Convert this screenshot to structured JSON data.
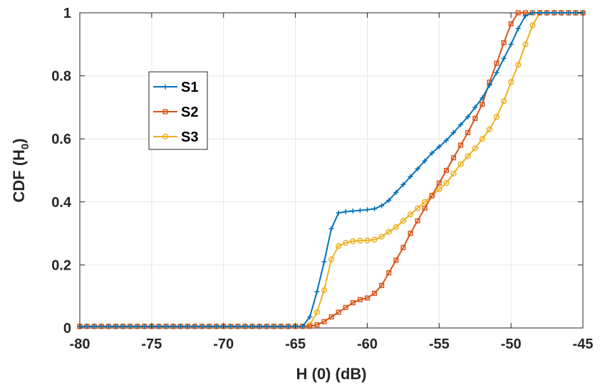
{
  "chart_data": {
    "type": "line",
    "title": "",
    "xlabel": "H (0) (dB)",
    "ylabel": "CDF (H",
    "ylabel_subscript": "0",
    "ylabel_close": ")",
    "xlim": [
      -80,
      -45
    ],
    "ylim": [
      0,
      1
    ],
    "xticks": [
      -80,
      -75,
      -70,
      -65,
      -60,
      -55,
      -50,
      -45
    ],
    "yticks": [
      0,
      0.2,
      0.4,
      0.6,
      0.8,
      1
    ],
    "xtick_labels": [
      "-80",
      "-75",
      "-70",
      "-65",
      "-60",
      "-55",
      "-50",
      "-45"
    ],
    "ytick_labels": [
      "0",
      "0.2",
      "0.4",
      "0.6",
      "0.8",
      "1"
    ],
    "grid": true,
    "legend_position": "upper-left-inside",
    "series": [
      {
        "name": "S1",
        "color": "#0072BD",
        "marker": "plus",
        "x": [
          -80,
          -79.5,
          -79,
          -78.5,
          -78,
          -77.5,
          -77,
          -76.5,
          -76,
          -75.5,
          -75,
          -74.5,
          -74,
          -73.5,
          -73,
          -72.5,
          -72,
          -71.5,
          -71,
          -70.5,
          -70,
          -69.5,
          -69,
          -68.5,
          -68,
          -67.5,
          -67,
          -66.5,
          -66,
          -65.5,
          -65,
          -64.5,
          -64,
          -63.5,
          -63,
          -62.5,
          -62,
          -61.5,
          -61,
          -60.5,
          -60,
          -59.5,
          -59,
          -58.5,
          -58,
          -57.5,
          -57,
          -56.5,
          -56,
          -55.5,
          -55,
          -54.5,
          -54,
          -53.5,
          -53,
          -52.5,
          -52,
          -51.5,
          -51,
          -50.5,
          -50,
          -49.5,
          -49,
          -48.5,
          -48,
          -47.5,
          -47,
          -46.5,
          -46,
          -45.5,
          -45
        ],
        "y": [
          0.005,
          0.005,
          0.005,
          0.005,
          0.005,
          0.005,
          0.005,
          0.005,
          0.005,
          0.005,
          0.005,
          0.005,
          0.005,
          0.005,
          0.005,
          0.005,
          0.005,
          0.005,
          0.005,
          0.005,
          0.005,
          0.005,
          0.005,
          0.005,
          0.005,
          0.005,
          0.005,
          0.005,
          0.005,
          0.005,
          0.005,
          0.005,
          0.035,
          0.115,
          0.21,
          0.315,
          0.365,
          0.369,
          0.371,
          0.373,
          0.375,
          0.378,
          0.388,
          0.405,
          0.43,
          0.455,
          0.48,
          0.505,
          0.53,
          0.555,
          0.575,
          0.595,
          0.62,
          0.645,
          0.67,
          0.7,
          0.73,
          0.77,
          0.81,
          0.855,
          0.9,
          0.95,
          0.99,
          1,
          1,
          1,
          1,
          1,
          1,
          1,
          1
        ]
      },
      {
        "name": "S2",
        "color": "#D95319",
        "marker": "square",
        "x": [
          -80,
          -79.5,
          -79,
          -78.5,
          -78,
          -77.5,
          -77,
          -76.5,
          -76,
          -75.5,
          -75,
          -74.5,
          -74,
          -73.5,
          -73,
          -72.5,
          -72,
          -71.5,
          -71,
          -70.5,
          -70,
          -69.5,
          -69,
          -68.5,
          -68,
          -67.5,
          -67,
          -66.5,
          -66,
          -65.5,
          -65,
          -64.5,
          -64,
          -63.5,
          -63,
          -62.5,
          -62,
          -61.5,
          -61,
          -60.5,
          -60,
          -59.5,
          -59,
          -58.5,
          -58,
          -57.5,
          -57,
          -56.5,
          -56,
          -55.5,
          -55,
          -54.5,
          -54,
          -53.5,
          -53,
          -52.5,
          -52,
          -51.5,
          -51,
          -50.5,
          -50,
          -49.5,
          -49,
          -48.5,
          -48,
          -47.5,
          -47,
          -46.5,
          -46,
          -45.5,
          -45
        ],
        "y": [
          0.005,
          0.005,
          0.005,
          0.005,
          0.005,
          0.005,
          0.005,
          0.005,
          0.005,
          0.005,
          0.005,
          0.005,
          0.005,
          0.005,
          0.005,
          0.005,
          0.005,
          0.005,
          0.005,
          0.005,
          0.005,
          0.005,
          0.005,
          0.005,
          0.005,
          0.005,
          0.005,
          0.005,
          0.005,
          0.005,
          0.005,
          0.005,
          0.005,
          0.01,
          0.02,
          0.035,
          0.05,
          0.065,
          0.08,
          0.09,
          0.095,
          0.11,
          0.135,
          0.175,
          0.215,
          0.255,
          0.3,
          0.34,
          0.38,
          0.42,
          0.46,
          0.5,
          0.54,
          0.58,
          0.62,
          0.665,
          0.71,
          0.78,
          0.84,
          0.905,
          0.965,
          1,
          1,
          1,
          1,
          1,
          1,
          1,
          1,
          1,
          1
        ]
      },
      {
        "name": "S3",
        "color": "#EDB120",
        "marker": "circle",
        "x": [
          -80,
          -79.5,
          -79,
          -78.5,
          -78,
          -77.5,
          -77,
          -76.5,
          -76,
          -75.5,
          -75,
          -74.5,
          -74,
          -73.5,
          -73,
          -72.5,
          -72,
          -71.5,
          -71,
          -70.5,
          -70,
          -69.5,
          -69,
          -68.5,
          -68,
          -67.5,
          -67,
          -66.5,
          -66,
          -65.5,
          -65,
          -64.5,
          -64,
          -63.5,
          -63,
          -62.5,
          -62,
          -61.5,
          -61,
          -60.5,
          -60,
          -59.5,
          -59,
          -58.5,
          -58,
          -57.5,
          -57,
          -56.5,
          -56,
          -55.5,
          -55,
          -54.5,
          -54,
          -53.5,
          -53,
          -52.5,
          -52,
          -51.5,
          -51,
          -50.5,
          -50,
          -49.5,
          -49,
          -48.5,
          -48,
          -47.5,
          -47,
          -46.5,
          -46,
          -45.5,
          -45
        ],
        "y": [
          0.005,
          0.005,
          0.005,
          0.005,
          0.005,
          0.005,
          0.005,
          0.005,
          0.005,
          0.005,
          0.005,
          0.005,
          0.005,
          0.005,
          0.005,
          0.005,
          0.005,
          0.005,
          0.005,
          0.005,
          0.005,
          0.005,
          0.005,
          0.005,
          0.005,
          0.005,
          0.005,
          0.005,
          0.005,
          0.005,
          0.005,
          0.005,
          0.01,
          0.05,
          0.12,
          0.218,
          0.26,
          0.27,
          0.275,
          0.277,
          0.278,
          0.28,
          0.29,
          0.305,
          0.32,
          0.34,
          0.36,
          0.38,
          0.4,
          0.42,
          0.44,
          0.46,
          0.49,
          0.52,
          0.545,
          0.57,
          0.6,
          0.63,
          0.67,
          0.72,
          0.78,
          0.835,
          0.9,
          0.96,
          1,
          1,
          1,
          1,
          1,
          1,
          1
        ]
      }
    ]
  }
}
